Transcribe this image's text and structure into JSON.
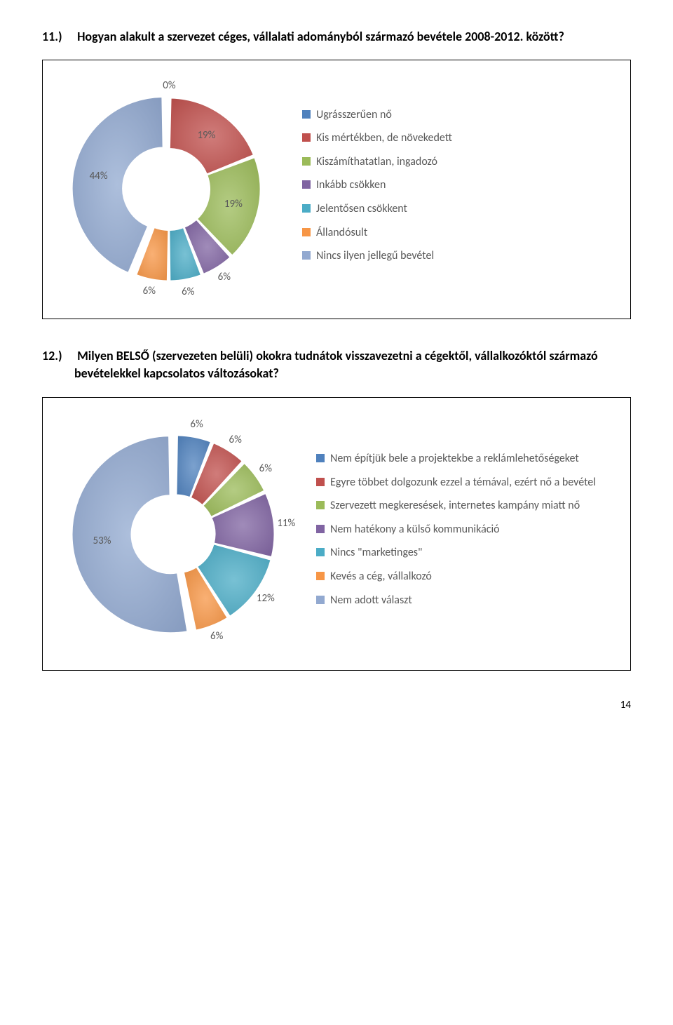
{
  "page_number": "14",
  "q1": {
    "number": "11.)",
    "text": "Hogyan alakult a szervezet céges, vállalati adományból származó bevétele 2008-2012. között?",
    "chart": {
      "type": "donut",
      "size": 320,
      "inner_ratio": 0.45,
      "slices": [
        {
          "label": "0%",
          "value": 0.1,
          "color": "#4f81bd"
        },
        {
          "label": "19%",
          "value": 19,
          "color": "#c0504d"
        },
        {
          "label": "19%",
          "value": 19,
          "color": "#9bbb59"
        },
        {
          "label": "6%",
          "value": 6,
          "color": "#8064a2"
        },
        {
          "label": "6%",
          "value": 6,
          "color": "#4bacc6"
        },
        {
          "label": "6%",
          "value": 6,
          "color": "#f79646"
        },
        {
          "label": "44%",
          "value": 44,
          "color": "#92a9d0"
        }
      ],
      "highlight_index": 6,
      "gap_deg": 2,
      "legend": [
        {
          "color": "#4f81bd",
          "text": "Ugrásszerűen nő"
        },
        {
          "color": "#c0504d",
          "text": "Kis mértékben, de növekedett"
        },
        {
          "color": "#9bbb59",
          "text": "Kiszámíthatatlan, ingadozó"
        },
        {
          "color": "#8064a2",
          "text": "Inkább csökken"
        },
        {
          "color": "#4bacc6",
          "text": "Jelentősen csökkent"
        },
        {
          "color": "#f79646",
          "text": "Állandósult"
        },
        {
          "color": "#92a9d0",
          "text": "Nincs ilyen jellegű bevétel"
        }
      ]
    }
  },
  "q2": {
    "number": "12.)",
    "text": "Milyen BELSŐ (szervezeten belüli) okokra tudnátok visszavezetni a cégektől, vállalkozóktól származó bevételekkel kapcsolatos változásokat?",
    "chart": {
      "type": "donut",
      "size": 340,
      "inner_ratio": 0.4,
      "slices": [
        {
          "label": "6%",
          "value": 6,
          "color": "#4f81bd"
        },
        {
          "label": "6%",
          "value": 6,
          "color": "#c0504d"
        },
        {
          "label": "6%",
          "value": 6,
          "color": "#9bbb59"
        },
        {
          "label": "11%",
          "value": 11,
          "color": "#8064a2"
        },
        {
          "label": "12%",
          "value": 12,
          "color": "#4bacc6"
        },
        {
          "label": "6%",
          "value": 6,
          "color": "#f79646"
        },
        {
          "label": "53%",
          "value": 53,
          "color": "#92a9d0"
        }
      ],
      "highlight_index": 6,
      "gap_deg": 2,
      "legend": [
        {
          "color": "#4f81bd",
          "text": "Nem építjük bele a projektekbe a reklámlehetőségeket"
        },
        {
          "color": "#c0504d",
          "text": "Egyre többet dolgozunk ezzel a témával, ezért nő a bevétel"
        },
        {
          "color": "#9bbb59",
          "text": "Szervezett megkeresések, internetes kampány miatt nő"
        },
        {
          "color": "#8064a2",
          "text": "Nem hatékony a külső kommunikáció"
        },
        {
          "color": "#4bacc6",
          "text": "Nincs \"marketinges\""
        },
        {
          "color": "#f79646",
          "text": "Kevés a cég, vállalkozó"
        },
        {
          "color": "#92a9d0",
          "text": "Nem adott választ"
        }
      ]
    }
  }
}
